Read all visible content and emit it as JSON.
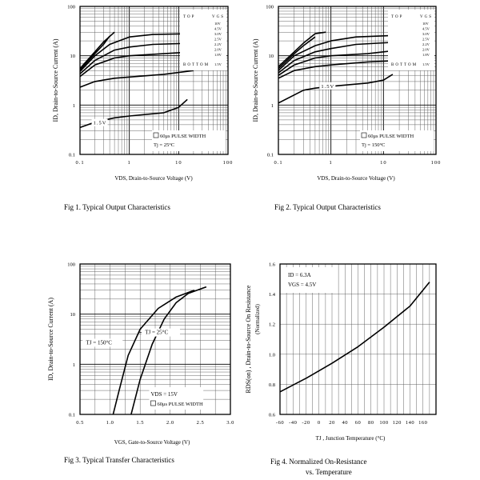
{
  "chart_data": [
    {
      "id": "fig1",
      "type": "line",
      "title": "Fig 1. Typical Output Characteristics",
      "xlabel": "VDS, Drain-to-Source Voltage (V)",
      "ylabel": "ID, Drain-to-Source Current (A)",
      "xscale": "log",
      "yscale": "log",
      "xlim": [
        0.1,
        100
      ],
      "ylim": [
        0.1,
        100
      ],
      "xticks": [
        0.1,
        1,
        10,
        100
      ],
      "xtick_labels": [
        "0.1",
        "1",
        "10",
        "100"
      ],
      "yticks": [
        0.1,
        1,
        10,
        100
      ],
      "ytick_labels": [
        "0.1",
        "1",
        "10",
        "100"
      ],
      "grid": true,
      "legend": {
        "header": [
          "TOP",
          "VGS"
        ],
        "entries": [
          "10V",
          "4.5V",
          "3.0V",
          "2.5V",
          "2.2V",
          "2.0V",
          "1.8V"
        ],
        "bottom_label": "BOTTOM",
        "bottom_entry": "1.5V"
      },
      "annotations": {
        "curve_label": "1.5V",
        "pulse": "60μs PULSE WIDTH",
        "temp": "Tj = 25°C"
      },
      "series": [
        {
          "name": "10V",
          "x": [
            0.1,
            0.2,
            0.3,
            0.5
          ],
          "y": [
            5.5,
            12,
            19,
            30
          ]
        },
        {
          "name": "4.5V",
          "x": [
            0.1,
            0.2,
            0.3,
            0.4
          ],
          "y": [
            5.2,
            11,
            17,
            25
          ]
        },
        {
          "name": "3.0V",
          "x": [
            0.1,
            0.2,
            0.4,
            1,
            3,
            20
          ],
          "y": [
            4.8,
            10,
            17,
            24,
            27,
            28
          ]
        },
        {
          "name": "2.5V",
          "x": [
            0.1,
            0.2,
            0.5,
            1,
            3,
            20
          ],
          "y": [
            4.3,
            8,
            13,
            15,
            17,
            18
          ]
        },
        {
          "name": "2.2V",
          "x": [
            0.1,
            0.2,
            0.5,
            1,
            5,
            20
          ],
          "y": [
            3.8,
            6.5,
            9,
            10,
            11,
            12
          ]
        },
        {
          "name": "2.0V",
          "x": [
            0.1,
            0.2,
            0.5,
            1,
            5,
            20
          ],
          "y": [
            2.3,
            3,
            3.5,
            3.7,
            4.2,
            5
          ]
        },
        {
          "name": "1.5V",
          "x": [
            0.1,
            0.2,
            0.5,
            1,
            5,
            10,
            15
          ],
          "y": [
            0.35,
            0.45,
            0.55,
            0.6,
            0.7,
            0.9,
            1.3
          ]
        }
      ]
    },
    {
      "id": "fig2",
      "type": "line",
      "title": "Fig 2. Typical Output Characteristics",
      "xlabel": "VDS, Drain-to-Source Voltage (V)",
      "ylabel": "ID, Drain-to-Source Current (A)",
      "xscale": "log",
      "yscale": "log",
      "xlim": [
        0.1,
        100
      ],
      "ylim": [
        0.1,
        100
      ],
      "xticks": [
        0.1,
        1,
        10,
        100
      ],
      "xtick_labels": [
        "0.1",
        "1",
        "10",
        "100"
      ],
      "yticks": [
        0.1,
        1,
        10,
        100
      ],
      "ytick_labels": [
        "0.1",
        "1",
        "10",
        "100"
      ],
      "grid": true,
      "legend": {
        "header": [
          "TOP",
          "VGS"
        ],
        "entries": [
          "10V",
          "4.5V",
          "3.0V",
          "2.5V",
          "2.2V",
          "2.0V",
          "1.8V"
        ],
        "bottom_label": "BOTTOM",
        "bottom_entry": "1.5V"
      },
      "annotations": {
        "curve_label": "1.5V",
        "pulse": "60μs PULSE WIDTH",
        "temp": "Tj = 150°C"
      },
      "series": [
        {
          "name": "10V",
          "x": [
            0.1,
            0.2,
            0.3,
            0.5,
            0.8
          ],
          "y": [
            6,
            12,
            18,
            28,
            30
          ]
        },
        {
          "name": "4.5V",
          "x": [
            0.1,
            0.2,
            0.3,
            0.5
          ],
          "y": [
            5.5,
            11,
            16,
            24
          ]
        },
        {
          "name": "3.0V",
          "x": [
            0.1,
            0.2,
            0.5,
            1,
            3,
            20
          ],
          "y": [
            5,
            10,
            16,
            20,
            24,
            26
          ]
        },
        {
          "name": "2.5V",
          "x": [
            0.1,
            0.2,
            0.5,
            1,
            3,
            20
          ],
          "y": [
            4.5,
            8,
            12,
            14,
            17,
            19
          ]
        },
        {
          "name": "2.2V",
          "x": [
            0.1,
            0.2,
            0.5,
            1,
            5,
            20
          ],
          "y": [
            4,
            6.5,
            9,
            10,
            11,
            13
          ]
        },
        {
          "name": "2.0V",
          "x": [
            0.1,
            0.2,
            0.5,
            1,
            5,
            20
          ],
          "y": [
            3.5,
            5,
            6,
            6.5,
            7.5,
            8
          ]
        },
        {
          "name": "1.5V",
          "x": [
            0.1,
            0.3,
            0.5,
            1,
            5,
            10,
            15
          ],
          "y": [
            1.1,
            2,
            2.2,
            2.4,
            2.8,
            3.2,
            4.2
          ]
        }
      ]
    },
    {
      "id": "fig3",
      "type": "line",
      "title": "Fig 3. Typical Transfer Characteristics",
      "xlabel": "VGS, Gate-to-Source Voltage (V)",
      "ylabel": "ID, Drain-to-Source Current (A)",
      "xscale": "linear",
      "yscale": "log",
      "xlim": [
        0.5,
        3.0
      ],
      "ylim": [
        0.1,
        100
      ],
      "xticks": [
        0.5,
        1.0,
        1.5,
        2.0,
        2.5,
        3.0
      ],
      "xtick_labels": [
        "0.5",
        "1.0",
        "1.5",
        "2.0",
        "2.5",
        "3.0"
      ],
      "yticks": [
        0.1,
        1,
        10,
        100
      ],
      "ytick_labels": [
        "0.1",
        "1",
        "10",
        "100"
      ],
      "grid": true,
      "annotations": {
        "vds": "VDS = 15V",
        "pulse": "60μs PULSE WIDTH"
      },
      "series": [
        {
          "name": "TJ = 150°C",
          "x": [
            1.05,
            1.15,
            1.3,
            1.5,
            1.8,
            2.1,
            2.4
          ],
          "y": [
            0.1,
            0.3,
            1.5,
            5,
            13,
            22,
            30
          ]
        },
        {
          "name": "TJ = 25°C",
          "x": [
            1.35,
            1.5,
            1.7,
            1.9,
            2.1,
            2.3,
            2.6
          ],
          "y": [
            0.1,
            0.5,
            2.5,
            8,
            17,
            26,
            35
          ]
        }
      ]
    },
    {
      "id": "fig4",
      "type": "line",
      "title": "Fig 4. Normalized On-Resistance",
      "title2": "vs. Temperature",
      "xlabel": "TJ , Junction Temperature (°C)",
      "ylabel": "RDS(on) , Drain-to-Source On Resistance",
      "ylabel2": "(Normalized)",
      "xscale": "linear",
      "yscale": "linear",
      "xlim": [
        -60,
        180
      ],
      "ylim": [
        0.6,
        1.6
      ],
      "xticks": [
        -60,
        -40,
        -20,
        0,
        20,
        40,
        60,
        80,
        100,
        120,
        140,
        160
      ],
      "xtick_labels": [
        "-60",
        "-40",
        "-20",
        "0",
        "20",
        "40",
        "60",
        "80",
        "100",
        "120",
        "140",
        "160"
      ],
      "yticks": [
        0.6,
        0.8,
        1.0,
        1.2,
        1.4,
        1.6
      ],
      "ytick_labels": [
        "0.6",
        "0.8",
        "1.0",
        "1.2",
        "1.4",
        "1.6"
      ],
      "grid": true,
      "annotations": {
        "id": "ID = 6.3A",
        "vgs": "VGS = 4.5V"
      },
      "series": [
        {
          "name": "RDS(on)",
          "x": [
            -60,
            -20,
            20,
            60,
            100,
            140,
            170
          ],
          "y": [
            0.75,
            0.84,
            0.94,
            1.05,
            1.18,
            1.32,
            1.48
          ]
        }
      ]
    }
  ]
}
